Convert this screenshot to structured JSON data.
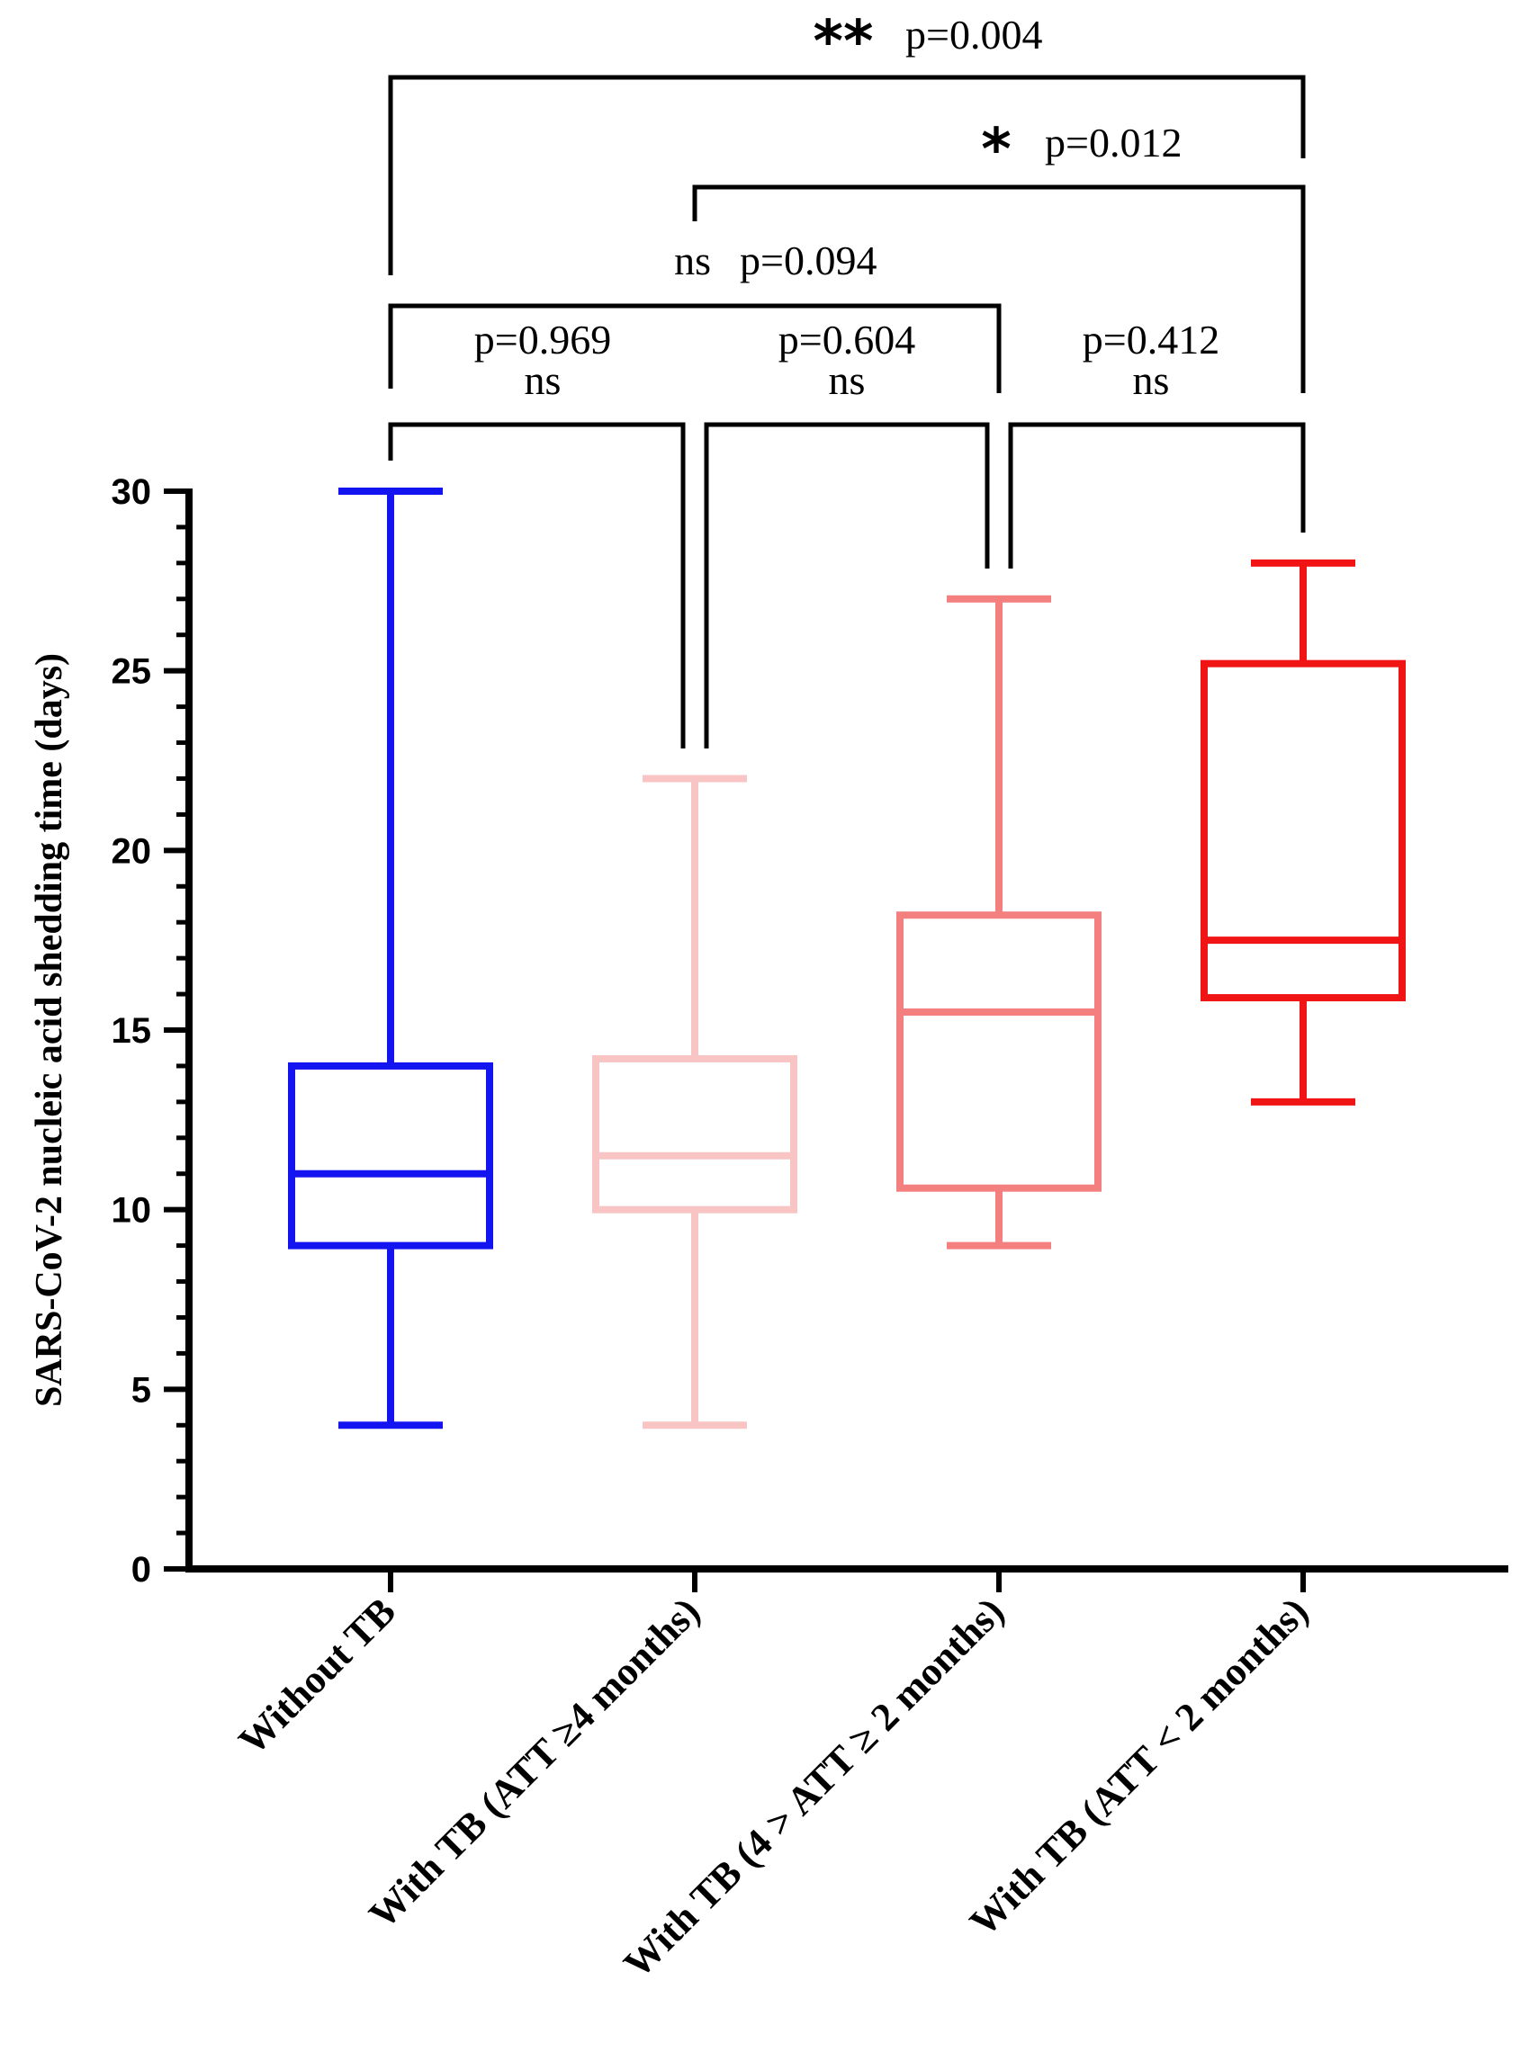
{
  "chart_data": {
    "type": "box",
    "title": "",
    "xlabel": "",
    "ylabel": "SARS-CoV-2 nucleic acid shedding time (days)",
    "ylim": [
      0,
      30
    ],
    "yticks": [
      0,
      5,
      10,
      15,
      20,
      25,
      30
    ],
    "grid": false,
    "categories": [
      "Without TB",
      "With TB (ATT ≥4 months)",
      "With TB (4 > ATT ≥ 2 months)",
      "With TB (ATT < 2 months)"
    ],
    "boxes": [
      {
        "name": "Without TB",
        "min": 4,
        "q1": 9,
        "median": 11,
        "q3": 14,
        "max": 30,
        "color": "#1414f0"
      },
      {
        "name": "With TB (ATT ≥4 months)",
        "min": 4,
        "q1": 10,
        "median": 11.5,
        "q3": 14.2,
        "max": 22,
        "color": "#f8c4c4"
      },
      {
        "name": "With TB (4 > ATT ≥ 2 months)",
        "min": 9,
        "q1": 10.6,
        "median": 15.5,
        "q3": 18.2,
        "max": 27,
        "color": "#f47f7f"
      },
      {
        "name": "With TB (ATT < 2 months)",
        "min": 13,
        "q1": 15.9,
        "median": 17.5,
        "q3": 25.2,
        "max": 28,
        "color": "#f01414"
      }
    ],
    "comparisons": [
      {
        "from": 0,
        "to": 3,
        "stars": "**",
        "p": "p=0.004"
      },
      {
        "from": 1,
        "to": 3,
        "stars": "*",
        "p": "p=0.012"
      },
      {
        "from": 0,
        "to": 2,
        "ns": "ns",
        "p": "p=0.094"
      },
      {
        "from": 0,
        "to": 1,
        "p": "p=0.969",
        "ns": "ns"
      },
      {
        "from": 1,
        "to": 2,
        "p": "p=0.604",
        "ns": "ns"
      },
      {
        "from": 2,
        "to": 3,
        "p": "p=0.412",
        "ns": "ns"
      }
    ]
  }
}
